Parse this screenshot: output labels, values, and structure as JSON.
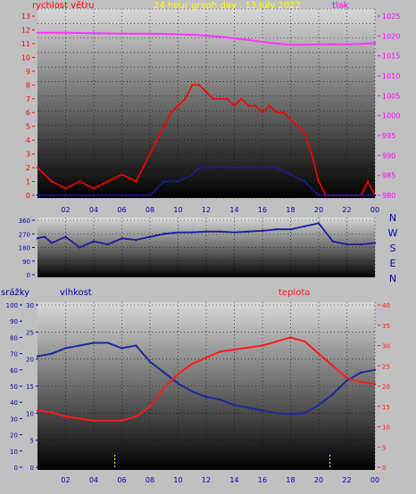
{
  "title": "24 hour graph day . 13.July 2022",
  "colors": {
    "wind": "#ff0000",
    "pressure": "#ff33ff",
    "direction": "#1a1aa0",
    "humidity": "#1a2a9a",
    "temperature": "#ff1a1a",
    "rain": "#ffd700",
    "yellow_text": "#ffff00",
    "left_axis": "#ff0000",
    "right_axis": "#ff00ff",
    "blue_axis": "#0000aa"
  },
  "chart_data": [
    {
      "type": "line",
      "title": "24 hour graph day . 13.July 2022",
      "x_ticks": [
        "02",
        "04",
        "06",
        "08",
        "10",
        "12",
        "14",
        "16",
        "18",
        "20",
        "22",
        "00"
      ],
      "left_axis": {
        "label": "rychlost větru",
        "ticks": [
          "0",
          "1",
          "2",
          "3",
          "4",
          "5",
          "6",
          "7",
          "8",
          "9",
          "10",
          "11",
          "12",
          "13"
        ],
        "range": [
          0,
          13
        ]
      },
      "right_axis": {
        "label": "tlak",
        "ticks": [
          "980",
          "985",
          "990",
          "995",
          "1000",
          "1005",
          "1010",
          "1015",
          "1020",
          "1025"
        ],
        "range": [
          980,
          1025
        ]
      },
      "series": [
        {
          "name": "rychlost větru",
          "axis": "left",
          "x": [
            0,
            1,
            2,
            3,
            4,
            5,
            6,
            7,
            7.5,
            8,
            8.5,
            9,
            9.5,
            10,
            10.5,
            11,
            11.5,
            12,
            12.5,
            13,
            13.5,
            14,
            14.5,
            15,
            15.5,
            16,
            16.5,
            17,
            17.5,
            18,
            18.5,
            19,
            19.5,
            20,
            20.5,
            21,
            22,
            23,
            23.5,
            24
          ],
          "y": [
            2,
            1,
            0.5,
            1,
            0.5,
            1,
            1.5,
            1,
            2,
            3,
            4,
            5,
            6,
            6.5,
            7,
            8,
            8,
            7.5,
            7,
            7,
            7,
            6.5,
            7,
            6.5,
            6.5,
            6,
            6.5,
            6,
            6,
            5.5,
            5,
            4.5,
            3,
            1,
            0,
            0,
            0,
            0,
            1,
            0
          ]
        },
        {
          "name": "wind_gust_envelope",
          "axis": "left",
          "x": [
            0,
            2,
            4,
            6,
            7,
            8,
            9,
            10,
            11,
            11.5,
            12,
            13,
            14,
            15,
            16,
            17,
            18,
            19,
            20,
            21,
            22,
            23,
            24
          ],
          "y": [
            0,
            0,
            0,
            0,
            0,
            0,
            1,
            1,
            1.5,
            2,
            2,
            2,
            2,
            2,
            2,
            2,
            1.5,
            1,
            0,
            0,
            0,
            0,
            0
          ]
        },
        {
          "name": "tlak",
          "axis": "right",
          "x": [
            0,
            2,
            4,
            6,
            8,
            10,
            11,
            12,
            13,
            14,
            15,
            16,
            17,
            18,
            19,
            20,
            21,
            22,
            23,
            24
          ],
          "y": [
            1020.8,
            1020.8,
            1020.7,
            1020.6,
            1020.6,
            1020.4,
            1020.3,
            1020.1,
            1019.8,
            1019.4,
            1019,
            1018.5,
            1018.1,
            1017.8,
            1017.8,
            1017.9,
            1017.9,
            1017.9,
            1018.0,
            1018.2
          ]
        }
      ]
    },
    {
      "type": "line",
      "right_labels": [
        "N",
        "W",
        "S",
        "E",
        "N"
      ],
      "left_axis": {
        "ticks": [
          "0",
          "90",
          "180",
          "270",
          "360"
        ],
        "range": [
          0,
          360
        ]
      },
      "series": [
        {
          "name": "směr větru",
          "x": [
            0,
            0.5,
            1,
            2,
            3,
            4,
            5,
            6,
            7,
            8,
            9,
            10,
            11,
            12,
            13,
            14,
            15,
            16,
            17,
            18,
            19,
            20,
            21,
            22,
            23,
            24
          ],
          "y": [
            240,
            250,
            210,
            250,
            180,
            220,
            200,
            240,
            230,
            250,
            270,
            280,
            280,
            285,
            285,
            280,
            285,
            290,
            300,
            300,
            320,
            340,
            220,
            200,
            200,
            210
          ]
        }
      ]
    },
    {
      "type": "line",
      "headers": {
        "rain": "srážky",
        "humidity": "vlhkost",
        "temperature": "teplota"
      },
      "rain_axis": {
        "ticks": [
          "0",
          "10",
          "20",
          "30",
          "40",
          "50",
          "60",
          "70",
          "80",
          "90",
          "100"
        ],
        "range": [
          0,
          100
        ]
      },
      "humidity_axis": {
        "ticks": [
          "0",
          "5",
          "10",
          "15",
          "20",
          "25",
          "30"
        ],
        "range": [
          0,
          30
        ]
      },
      "temperature_axis": {
        "ticks": [
          "0",
          "5",
          "10",
          "15",
          "20",
          "25",
          "30",
          "35",
          "40"
        ],
        "range": [
          0,
          40
        ]
      },
      "series": [
        {
          "name": "vlhkost",
          "x": [
            0,
            1,
            2,
            3,
            4,
            5,
            6,
            7,
            8,
            9,
            10,
            11,
            12,
            13,
            14,
            15,
            16,
            17,
            18,
            19,
            20,
            21,
            22,
            23,
            24
          ],
          "y": [
            20.5,
            21,
            22,
            22.5,
            23,
            23,
            22,
            22.5,
            19.5,
            17.5,
            15.5,
            14,
            13,
            12.5,
            11.5,
            11,
            10.5,
            10,
            9.8,
            10,
            11.5,
            13.5,
            16,
            17.5,
            18
          ]
        },
        {
          "name": "teplota",
          "x": [
            0,
            1,
            2,
            3,
            4,
            5,
            6,
            7,
            8,
            9,
            10,
            11,
            12,
            13,
            14,
            15,
            16,
            17,
            18,
            19,
            20,
            21,
            22,
            23,
            24
          ],
          "y": [
            14,
            13.5,
            12.5,
            12,
            11.5,
            11.5,
            11.5,
            12.5,
            15,
            19.5,
            23,
            25.5,
            27,
            28.5,
            29,
            29.5,
            30,
            31,
            32,
            31,
            28,
            25,
            22,
            21,
            20.5
          ]
        },
        {
          "name": "srážky",
          "x": [
            5.5,
            20.8
          ],
          "y": [
            3,
            3
          ]
        }
      ]
    }
  ]
}
